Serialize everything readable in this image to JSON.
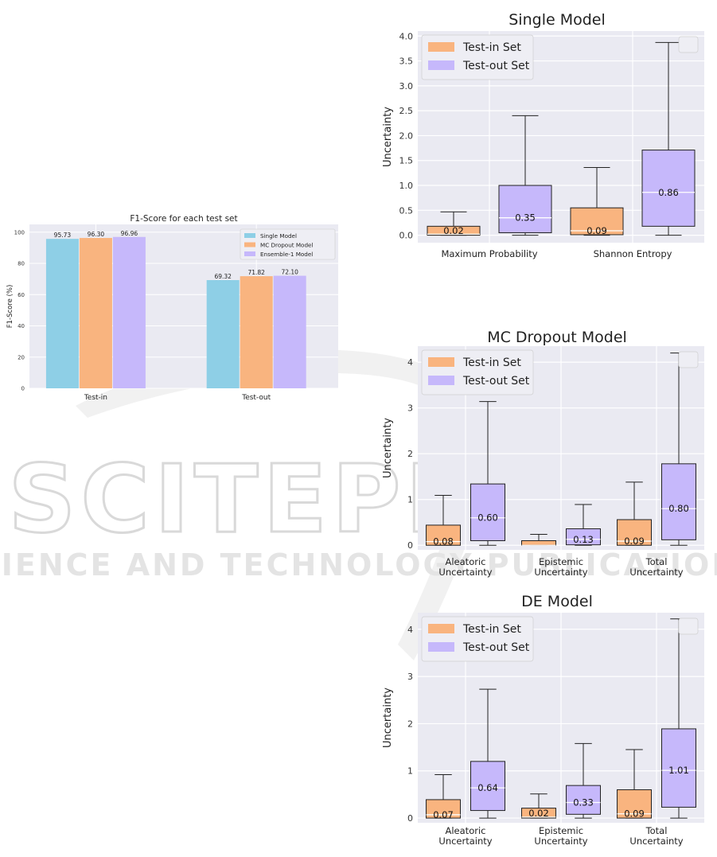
{
  "watermark": {
    "big": "SCITEPRESS",
    "small": "SCIENCE AND TECHNOLOGY PUBLICATIONS"
  },
  "chart_data": [
    {
      "type": "bar",
      "title": "F1-Score for each test set",
      "xlabel": "",
      "ylabel": "F1-Score (%)",
      "ylim": [
        0,
        105
      ],
      "yticks": [
        0,
        20,
        40,
        60,
        80,
        100
      ],
      "categories": [
        "Test-in",
        "Test-out"
      ],
      "series": [
        {
          "name": "Single Model",
          "values": [
            95.73,
            69.32
          ],
          "labels": [
            "95.73",
            "69.32"
          ],
          "color": "#8ecfe6"
        },
        {
          "name": "MC Dropout Model",
          "values": [
            96.3,
            71.82
          ],
          "labels": [
            "96.30",
            "71.82"
          ],
          "color": "#f9b47f"
        },
        {
          "name": "Ensemble-1 Model",
          "values": [
            96.96,
            72.1
          ],
          "labels": [
            "96.96",
            "72.10"
          ],
          "color": "#c6b8fb"
        }
      ],
      "legend": "top-right",
      "grid": true
    },
    {
      "type": "box",
      "title": "Single Model",
      "ylabel": "Uncertainty",
      "ylim": [
        -0.15,
        4.1
      ],
      "yticks": [
        0.0,
        0.5,
        1.0,
        1.5,
        2.0,
        2.5,
        3.0,
        3.5,
        4.0
      ],
      "ytick_labels": [
        "0.0",
        "0.5",
        "1.0",
        "1.5",
        "2.0",
        "2.5",
        "3.0",
        "3.5",
        "4.0"
      ],
      "categories": [
        "Maximum Probability",
        "Shannon Entropy"
      ],
      "series": [
        {
          "name": "Test-in Set",
          "color": "#f9b47f",
          "boxes": [
            {
              "whislo": 0.0,
              "q1": 0.0,
              "med": 0.02,
              "q3": 0.18,
              "whishi": 0.47,
              "label": "0.02"
            },
            {
              "whislo": 0.0,
              "q1": 0.01,
              "med": 0.09,
              "q3": 0.55,
              "whishi": 1.36,
              "label": "0.09"
            }
          ]
        },
        {
          "name": "Test-out Set",
          "color": "#c6b8fb",
          "boxes": [
            {
              "whislo": 0.0,
              "q1": 0.05,
              "med": 0.35,
              "q3": 1.0,
              "whishi": 2.4,
              "label": "0.35"
            },
            {
              "whislo": 0.0,
              "q1": 0.18,
              "med": 0.86,
              "q3": 1.71,
              "whishi": 3.87,
              "label": "0.86"
            }
          ]
        }
      ],
      "legend": "top-left",
      "grid": true
    },
    {
      "type": "box",
      "title": "MC Dropout Model",
      "ylabel": "Uncertainty",
      "ylim": [
        -0.1,
        4.35
      ],
      "yticks": [
        0,
        1,
        2,
        3,
        4
      ],
      "ytick_labels": [
        "0",
        "1",
        "2",
        "3",
        "4"
      ],
      "categories": [
        "Aleatoric\nUncertainty",
        "Epistemic\nUncertainty",
        "Total\nUncertainty"
      ],
      "series": [
        {
          "name": "Test-in Set",
          "color": "#f9b47f",
          "boxes": [
            {
              "whislo": 0.0,
              "q1": 0.0,
              "med": 0.08,
              "q3": 0.44,
              "whishi": 1.09,
              "label": "0.08"
            },
            {
              "whislo": 0.0,
              "q1": 0.0,
              "med": 0.0,
              "q3": 0.1,
              "whishi": 0.24,
              "label": ""
            },
            {
              "whislo": 0.0,
              "q1": 0.0,
              "med": 0.09,
              "q3": 0.56,
              "whishi": 1.38,
              "label": "0.09"
            }
          ]
        },
        {
          "name": "Test-out Set",
          "color": "#c6b8fb",
          "boxes": [
            {
              "whislo": 0.0,
              "q1": 0.1,
              "med": 0.6,
              "q3": 1.34,
              "whishi": 3.14,
              "label": "0.60"
            },
            {
              "whislo": 0.0,
              "q1": 0.01,
              "med": 0.13,
              "q3": 0.36,
              "whishi": 0.89,
              "label": "0.13"
            },
            {
              "whislo": 0.0,
              "q1": 0.12,
              "med": 0.8,
              "q3": 1.78,
              "whishi": 4.2,
              "label": "0.80"
            }
          ]
        }
      ],
      "legend": "top-left",
      "grid": true
    },
    {
      "type": "box",
      "title": "DE Model",
      "ylabel": "Uncertainty",
      "ylim": [
        -0.1,
        4.35
      ],
      "yticks": [
        0,
        1,
        2,
        3,
        4
      ],
      "ytick_labels": [
        "0",
        "1",
        "2",
        "3",
        "4"
      ],
      "categories": [
        "Aleatoric\nUncertainty",
        "Epistemic\nUncertainty",
        "Total\nUncertainty"
      ],
      "series": [
        {
          "name": "Test-in Set",
          "color": "#f9b47f",
          "boxes": [
            {
              "whislo": 0.0,
              "q1": 0.0,
              "med": 0.07,
              "q3": 0.39,
              "whishi": 0.92,
              "label": "0.07"
            },
            {
              "whislo": 0.0,
              "q1": 0.0,
              "med": 0.02,
              "q3": 0.21,
              "whishi": 0.51,
              "label": "0.02"
            },
            {
              "whislo": 0.0,
              "q1": 0.0,
              "med": 0.09,
              "q3": 0.6,
              "whishi": 1.45,
              "label": "0.09"
            }
          ]
        },
        {
          "name": "Test-out Set",
          "color": "#c6b8fb",
          "boxes": [
            {
              "whislo": 0.0,
              "q1": 0.16,
              "med": 0.64,
              "q3": 1.2,
              "whishi": 2.73,
              "label": "0.64"
            },
            {
              "whislo": 0.0,
              "q1": 0.08,
              "med": 0.33,
              "q3": 0.69,
              "whishi": 1.58,
              "label": "0.33"
            },
            {
              "whislo": 0.0,
              "q1": 0.23,
              "med": 1.01,
              "q3": 1.89,
              "whishi": 4.22,
              "label": "1.01"
            }
          ]
        }
      ],
      "legend": "top-left",
      "grid": true
    }
  ]
}
